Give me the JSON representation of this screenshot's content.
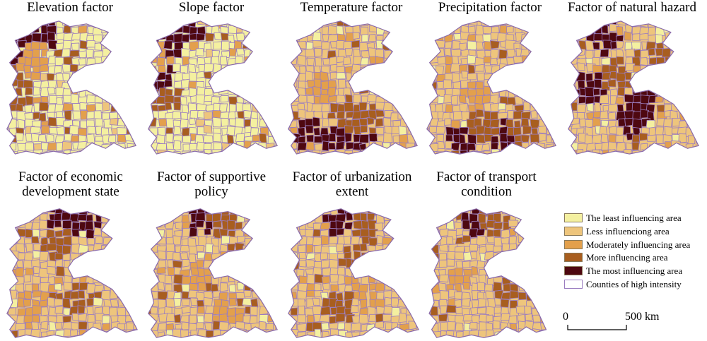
{
  "colors": {
    "least": "#f4f0a0",
    "less": "#eec57c",
    "moderate": "#e3a04c",
    "more": "#a85e1f",
    "most": "#4e0810",
    "county_outline": "#9a7cc0"
  },
  "panels": [
    {
      "id": "elevation",
      "title": [
        "Elevation factor"
      ],
      "dominant": "least",
      "hotspots": [
        [
          "most",
          0.18,
          0.18
        ],
        [
          "most",
          0.3,
          0.1
        ],
        [
          "more",
          0.15,
          0.35
        ],
        [
          "more",
          0.12,
          0.55
        ],
        [
          "most",
          0.12,
          0.22
        ],
        [
          "moderate",
          0.25,
          0.3
        ]
      ]
    },
    {
      "id": "slope",
      "title": [
        "Slope factor"
      ],
      "dominant": "least",
      "hotspots": [
        [
          "most",
          0.2,
          0.2
        ],
        [
          "most",
          0.34,
          0.1
        ],
        [
          "most",
          0.12,
          0.45
        ],
        [
          "more",
          0.15,
          0.58
        ],
        [
          "moderate",
          0.1,
          0.3
        ]
      ]
    },
    {
      "id": "temperature",
      "title": [
        "Temperature factor"
      ],
      "dominant": "less",
      "hotspots": [
        [
          "most",
          0.35,
          0.85
        ],
        [
          "most",
          0.55,
          0.85
        ],
        [
          "most",
          0.2,
          0.82
        ],
        [
          "more",
          0.6,
          0.72
        ],
        [
          "more",
          0.45,
          0.7
        ],
        [
          "moderate",
          0.3,
          0.5
        ]
      ]
    },
    {
      "id": "precipitation",
      "title": [
        "Precipitation factor"
      ],
      "dominant": "less",
      "hotspots": [
        [
          "most",
          0.3,
          0.88
        ],
        [
          "most",
          0.6,
          0.85
        ],
        [
          "more",
          0.45,
          0.78
        ],
        [
          "more",
          0.75,
          0.8
        ],
        [
          "moderate",
          0.4,
          0.55
        ]
      ]
    },
    {
      "id": "natural_hazard",
      "title": [
        "Factor of natural hazard"
      ],
      "dominant": "less",
      "hotspots": [
        [
          "most",
          0.3,
          0.15
        ],
        [
          "most",
          0.6,
          0.6
        ],
        [
          "most",
          0.2,
          0.5
        ],
        [
          "more",
          0.4,
          0.4
        ],
        [
          "more",
          0.7,
          0.3
        ],
        [
          "most",
          0.5,
          0.75
        ]
      ]
    },
    {
      "id": "economic",
      "title": [
        "Factor of economic",
        "development state"
      ],
      "dominant": "less",
      "hotspots": [
        [
          "most",
          0.45,
          0.1
        ],
        [
          "most",
          0.6,
          0.12
        ],
        [
          "more",
          0.4,
          0.3
        ],
        [
          "more",
          0.55,
          0.7
        ],
        [
          "moderate",
          0.2,
          0.75
        ]
      ]
    },
    {
      "id": "supportive_policy",
      "title": [
        "Factor of supportive",
        "policy"
      ],
      "dominant": "less",
      "hotspots": [
        [
          "most",
          0.45,
          0.1
        ],
        [
          "more",
          0.6,
          0.12
        ],
        [
          "moderate",
          0.4,
          0.5
        ],
        [
          "moderate",
          0.6,
          0.75
        ]
      ]
    },
    {
      "id": "urbanization",
      "title": [
        "Factor of urbanization",
        "extent"
      ],
      "dominant": "less",
      "hotspots": [
        [
          "most",
          0.45,
          0.1
        ],
        [
          "more",
          0.6,
          0.15
        ],
        [
          "more",
          0.55,
          0.4
        ],
        [
          "more",
          0.4,
          0.75
        ],
        [
          "moderate",
          0.6,
          0.65
        ]
      ]
    },
    {
      "id": "transport",
      "title": [
        "Factor of transport",
        "condition"
      ],
      "dominant": "less",
      "hotspots": [
        [
          "most",
          0.45,
          0.1
        ],
        [
          "more",
          0.55,
          0.12
        ],
        [
          "more",
          0.7,
          0.65
        ],
        [
          "moderate",
          0.3,
          0.55
        ]
      ]
    }
  ],
  "legend": {
    "items": [
      {
        "label": "The least influencing area",
        "color": "least"
      },
      {
        "label": "Less influenciong area",
        "color": "less"
      },
      {
        "label": "Moderately influencing area",
        "color": "moderate"
      },
      {
        "label": "More influencing area",
        "color": "more"
      },
      {
        "label": "The most influencing area",
        "color": "most"
      },
      {
        "label": "Counties of high intensity",
        "color": "outline"
      }
    ]
  },
  "scale": {
    "start": "0",
    "end": "500 km"
  }
}
